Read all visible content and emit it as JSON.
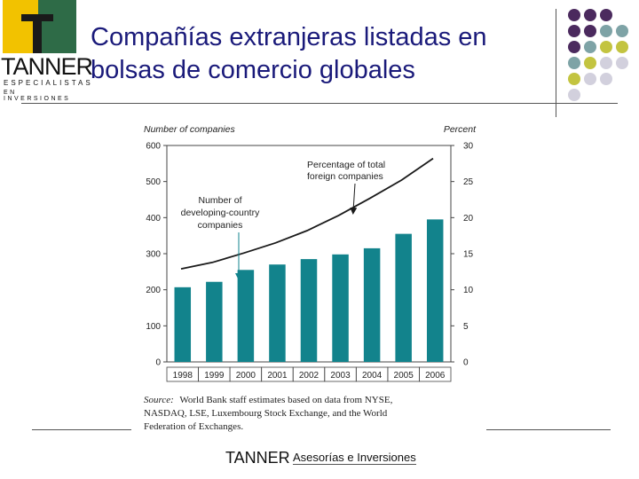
{
  "header": {
    "title": "Compañías extranjeras listadas en bolsas de comercio globales",
    "logo_word": "TANNER",
    "logo_line1": "ESPECIALISTAS",
    "logo_line2": "EN INVERSIONES"
  },
  "footer": {
    "brand": "TANNER",
    "subtitle": "Asesorías e Inversiones"
  },
  "colors": {
    "title": "#1a1a7a",
    "bar": "#12838c",
    "line": "#1a1a1a",
    "dot_purple": "#4b2a5e",
    "dot_teal": "#7ea3a6",
    "dot_olive": "#c3c440",
    "dot_lavender": "#d2d0dd"
  },
  "chart_data": {
    "type": "bar",
    "left_axis_title": "Number of companies",
    "right_axis_title": "Percent",
    "categories": [
      "1998",
      "1999",
      "2000",
      "2001",
      "2002",
      "2003",
      "2004",
      "2005",
      "2006"
    ],
    "left_ticks": [
      "0",
      "100",
      "200",
      "300",
      "400",
      "500",
      "600"
    ],
    "right_ticks": [
      "0",
      "5",
      "10",
      "15",
      "20",
      "25",
      "30"
    ],
    "ylim_left": [
      0,
      600
    ],
    "ylim_right": [
      0,
      30
    ],
    "series": [
      {
        "name": "Number of developing-country companies",
        "type": "bar",
        "axis": "left",
        "values": [
          207,
          222,
          255,
          270,
          285,
          298,
          315,
          355,
          395
        ]
      },
      {
        "name": "Percentage of total foreign companies",
        "type": "line",
        "axis": "right",
        "values": [
          12.9,
          13.8,
          15.1,
          16.5,
          18.2,
          20.3,
          22.7,
          25.2,
          28.2
        ]
      }
    ],
    "annotations": {
      "line_label_1": "Percentage of total",
      "line_label_2": "foreign companies",
      "bar_label_1": "Number of",
      "bar_label_2": "developing-country",
      "bar_label_3": "companies"
    },
    "source_line1": "World Bank staff estimates based on data from NYSE,",
    "source_line2": "NASDAQ, LSE, Luxembourg Stock Exchange, and the World",
    "source_line3": "Federation of Exchanges.",
    "source_prefix": "Source:"
  }
}
